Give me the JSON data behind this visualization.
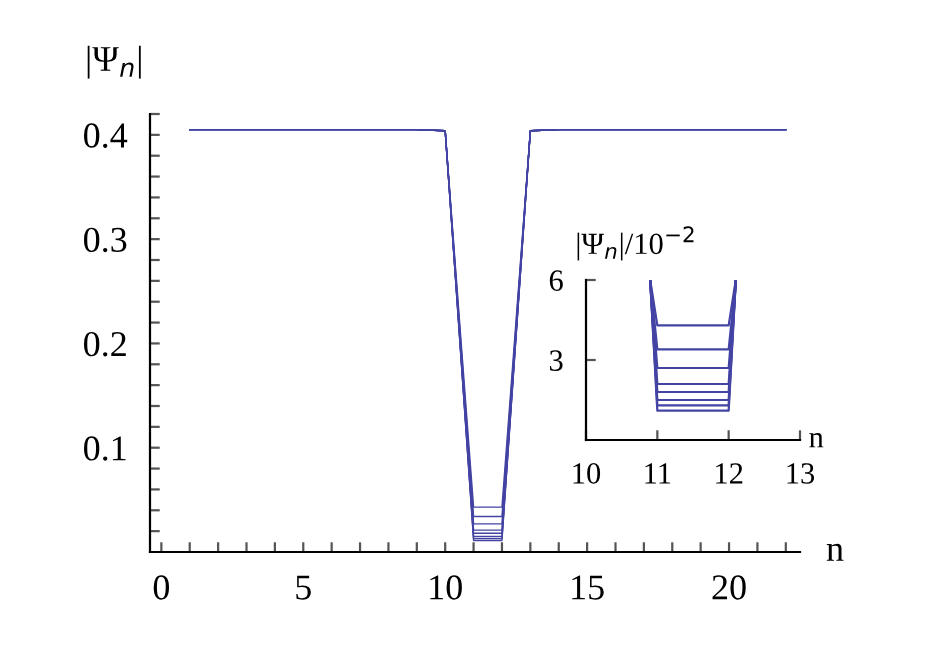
{
  "chart_data": [
    {
      "type": "line",
      "xlabel": "n",
      "ylabel": "|Ψ$_{n}$|",
      "x": [
        1,
        2,
        3,
        4,
        5,
        6,
        7,
        8,
        9,
        10,
        11,
        12,
        13,
        14,
        15,
        16,
        17,
        18,
        19,
        20,
        21,
        22
      ],
      "series": [
        {
          "color": "#4444a4",
          "values": [
            0.405,
            0.405,
            0.405,
            0.405,
            0.405,
            0.405,
            0.405,
            0.405,
            0.405,
            0.404,
            0.043,
            0.043,
            0.404,
            0.405,
            0.405,
            0.405,
            0.405,
            0.405,
            0.405,
            0.405,
            0.405,
            0.405
          ]
        },
        {
          "color": "#4444a4",
          "values": [
            0.405,
            0.405,
            0.405,
            0.405,
            0.405,
            0.405,
            0.405,
            0.405,
            0.405,
            0.404,
            0.034,
            0.034,
            0.404,
            0.405,
            0.405,
            0.405,
            0.405,
            0.405,
            0.405,
            0.405,
            0.405,
            0.405
          ]
        },
        {
          "color": "#4444a4",
          "values": [
            0.405,
            0.405,
            0.405,
            0.405,
            0.405,
            0.405,
            0.405,
            0.405,
            0.405,
            0.404,
            0.027,
            0.027,
            0.404,
            0.405,
            0.405,
            0.405,
            0.405,
            0.405,
            0.405,
            0.405,
            0.405,
            0.405
          ]
        },
        {
          "color": "#4444a4",
          "values": [
            0.405,
            0.405,
            0.405,
            0.405,
            0.405,
            0.405,
            0.405,
            0.405,
            0.405,
            0.404,
            0.021,
            0.021,
            0.404,
            0.405,
            0.405,
            0.405,
            0.405,
            0.405,
            0.405,
            0.405,
            0.405,
            0.405
          ]
        },
        {
          "color": "#4444a4",
          "values": [
            0.405,
            0.405,
            0.405,
            0.405,
            0.405,
            0.405,
            0.405,
            0.405,
            0.405,
            0.404,
            0.018,
            0.018,
            0.404,
            0.405,
            0.405,
            0.405,
            0.405,
            0.405,
            0.405,
            0.405,
            0.405,
            0.405
          ]
        },
        {
          "color": "#4444a4",
          "values": [
            0.405,
            0.405,
            0.405,
            0.405,
            0.405,
            0.405,
            0.405,
            0.405,
            0.405,
            0.404,
            0.015,
            0.015,
            0.404,
            0.405,
            0.405,
            0.405,
            0.405,
            0.405,
            0.405,
            0.405,
            0.405,
            0.405
          ]
        },
        {
          "color": "#4444a4",
          "values": [
            0.405,
            0.405,
            0.405,
            0.405,
            0.405,
            0.405,
            0.405,
            0.405,
            0.405,
            0.404,
            0.013,
            0.013,
            0.404,
            0.405,
            0.405,
            0.405,
            0.405,
            0.405,
            0.405,
            0.405,
            0.405,
            0.405
          ]
        },
        {
          "color": "#4444a4",
          "values": [
            0.405,
            0.405,
            0.405,
            0.405,
            0.405,
            0.405,
            0.405,
            0.405,
            0.405,
            0.404,
            0.011,
            0.011,
            0.404,
            0.405,
            0.405,
            0.405,
            0.405,
            0.405,
            0.405,
            0.405,
            0.405,
            0.405
          ]
        }
      ],
      "xlim": [
        -0.4,
        22.5
      ],
      "ylim": [
        0,
        0.42
      ],
      "xticks": [
        0,
        {
          "value": 1,
          "label": null
        },
        {
          "value": 2,
          "label": null
        },
        {
          "value": 3,
          "label": null
        },
        {
          "value": 4,
          "label": null
        },
        5,
        {
          "value": 6,
          "label": null
        },
        {
          "value": 7,
          "label": null
        },
        {
          "value": 8,
          "label": null
        },
        {
          "value": 9,
          "label": null
        },
        10,
        {
          "value": 11,
          "label": null
        },
        {
          "value": 12,
          "label": null
        },
        {
          "value": 13,
          "label": null
        },
        {
          "value": 14,
          "label": null
        },
        15,
        {
          "value": 16,
          "label": null
        },
        {
          "value": 17,
          "label": null
        },
        {
          "value": 18,
          "label": null
        },
        {
          "value": 19,
          "label": null
        },
        20,
        {
          "value": 21,
          "label": null
        },
        {
          "value": 22,
          "label": null
        }
      ],
      "yticks": [
        {
          "value": 0.02,
          "label": null
        },
        {
          "value": 0.04,
          "label": null
        },
        {
          "value": 0.06,
          "label": null
        },
        {
          "value": 0.08,
          "label": null
        },
        0.1,
        {
          "value": 0.12,
          "label": null
        },
        {
          "value": 0.14,
          "label": null
        },
        {
          "value": 0.16,
          "label": null
        },
        {
          "value": 0.18,
          "label": null
        },
        0.2,
        {
          "value": 0.22,
          "label": null
        },
        {
          "value": 0.24,
          "label": null
        },
        {
          "value": 0.26,
          "label": null
        },
        {
          "value": 0.28,
          "label": null
        },
        0.3,
        {
          "value": 0.32,
          "label": null
        },
        {
          "value": 0.34,
          "label": null
        },
        {
          "value": 0.36,
          "label": null
        },
        {
          "value": 0.38,
          "label": null
        },
        0.4,
        {
          "value": 0.42,
          "label": null
        }
      ],
      "grid": false,
      "legend": false
    },
    {
      "type": "line",
      "xlabel": "n",
      "ylabel": "|Ψ$_{n}$|/10$^{−2}$",
      "x": [
        10.9,
        11,
        12,
        12.1
      ],
      "series": [
        {
          "color": "#4444a4",
          "values": [
            6,
            4.3,
            4.3,
            6
          ]
        },
        {
          "color": "#4444a4",
          "values": [
            6,
            3.4,
            3.4,
            6
          ]
        },
        {
          "color": "#4444a4",
          "values": [
            6,
            2.7,
            2.7,
            6
          ]
        },
        {
          "color": "#4444a4",
          "values": [
            6,
            2.1,
            2.1,
            6
          ]
        },
        {
          "color": "#4444a4",
          "values": [
            6,
            1.8,
            1.8,
            6
          ]
        },
        {
          "color": "#4444a4",
          "values": [
            6,
            1.5,
            1.5,
            6
          ]
        },
        {
          "color": "#4444a4",
          "values": [
            6,
            1.3,
            1.3,
            6
          ]
        },
        {
          "color": "#4444a4",
          "values": [
            6,
            1.1,
            1.1,
            6
          ]
        }
      ],
      "xlim": [
        10,
        13
      ],
      "ylim": [
        0,
        6
      ],
      "xticks": [
        10,
        11,
        12,
        13
      ],
      "yticks": [
        3,
        6
      ],
      "grid": false,
      "legend": false
    }
  ]
}
